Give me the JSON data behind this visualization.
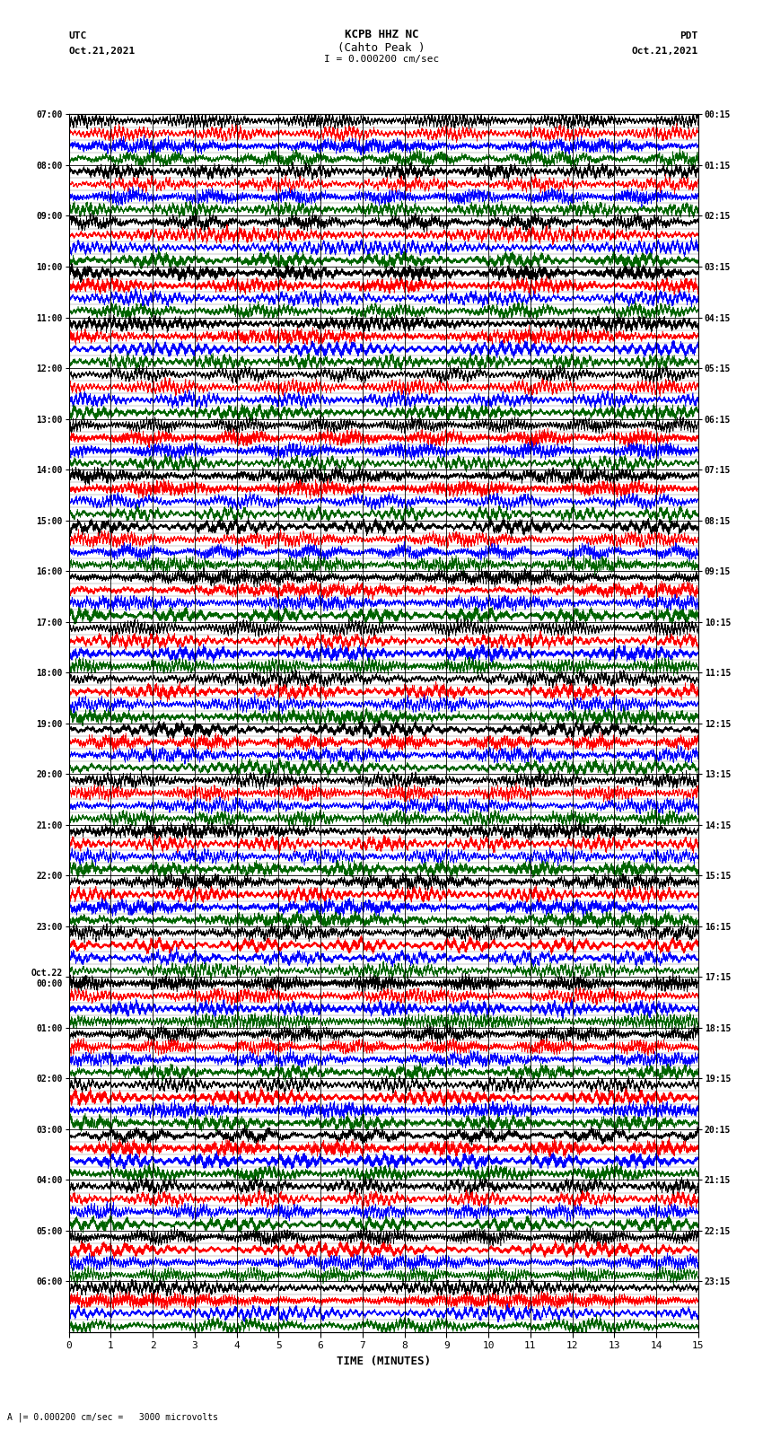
{
  "title_line1": "KCPB HHZ NC",
  "title_line2": "(Cahto Peak )",
  "title_line3": "I = 0.000200 cm/sec",
  "left_label_top1": "UTC",
  "left_label_top2": "Oct.21,2021",
  "right_label_top1": "PDT",
  "right_label_top2": "Oct.21,2021",
  "bottom_label": "TIME (MINUTES)",
  "bottom_note": "A |= 0.000200 cm/sec =   3000 microvolts",
  "utc_times": [
    "07:00",
    "08:00",
    "09:00",
    "10:00",
    "11:00",
    "12:00",
    "13:00",
    "14:00",
    "15:00",
    "16:00",
    "17:00",
    "18:00",
    "19:00",
    "20:00",
    "21:00",
    "22:00",
    "23:00",
    "Oct.22\n00:00",
    "01:00",
    "02:00",
    "03:00",
    "04:00",
    "05:00",
    "06:00"
  ],
  "pdt_times": [
    "00:15",
    "01:15",
    "02:15",
    "03:15",
    "04:15",
    "05:15",
    "06:15",
    "07:15",
    "08:15",
    "09:15",
    "10:15",
    "11:15",
    "12:15",
    "13:15",
    "14:15",
    "15:15",
    "16:15",
    "17:15",
    "18:15",
    "19:15",
    "20:15",
    "21:15",
    "22:15",
    "23:15"
  ],
  "num_rows": 24,
  "traces_per_row": 4,
  "minutes_per_row": 15,
  "x_ticks": [
    0,
    1,
    2,
    3,
    4,
    5,
    6,
    7,
    8,
    9,
    10,
    11,
    12,
    13,
    14,
    15
  ],
  "colors": [
    "black",
    "red",
    "blue",
    "darkgreen"
  ],
  "bg_color": "white",
  "fig_width": 8.5,
  "fig_height": 16.13,
  "dpi": 100
}
